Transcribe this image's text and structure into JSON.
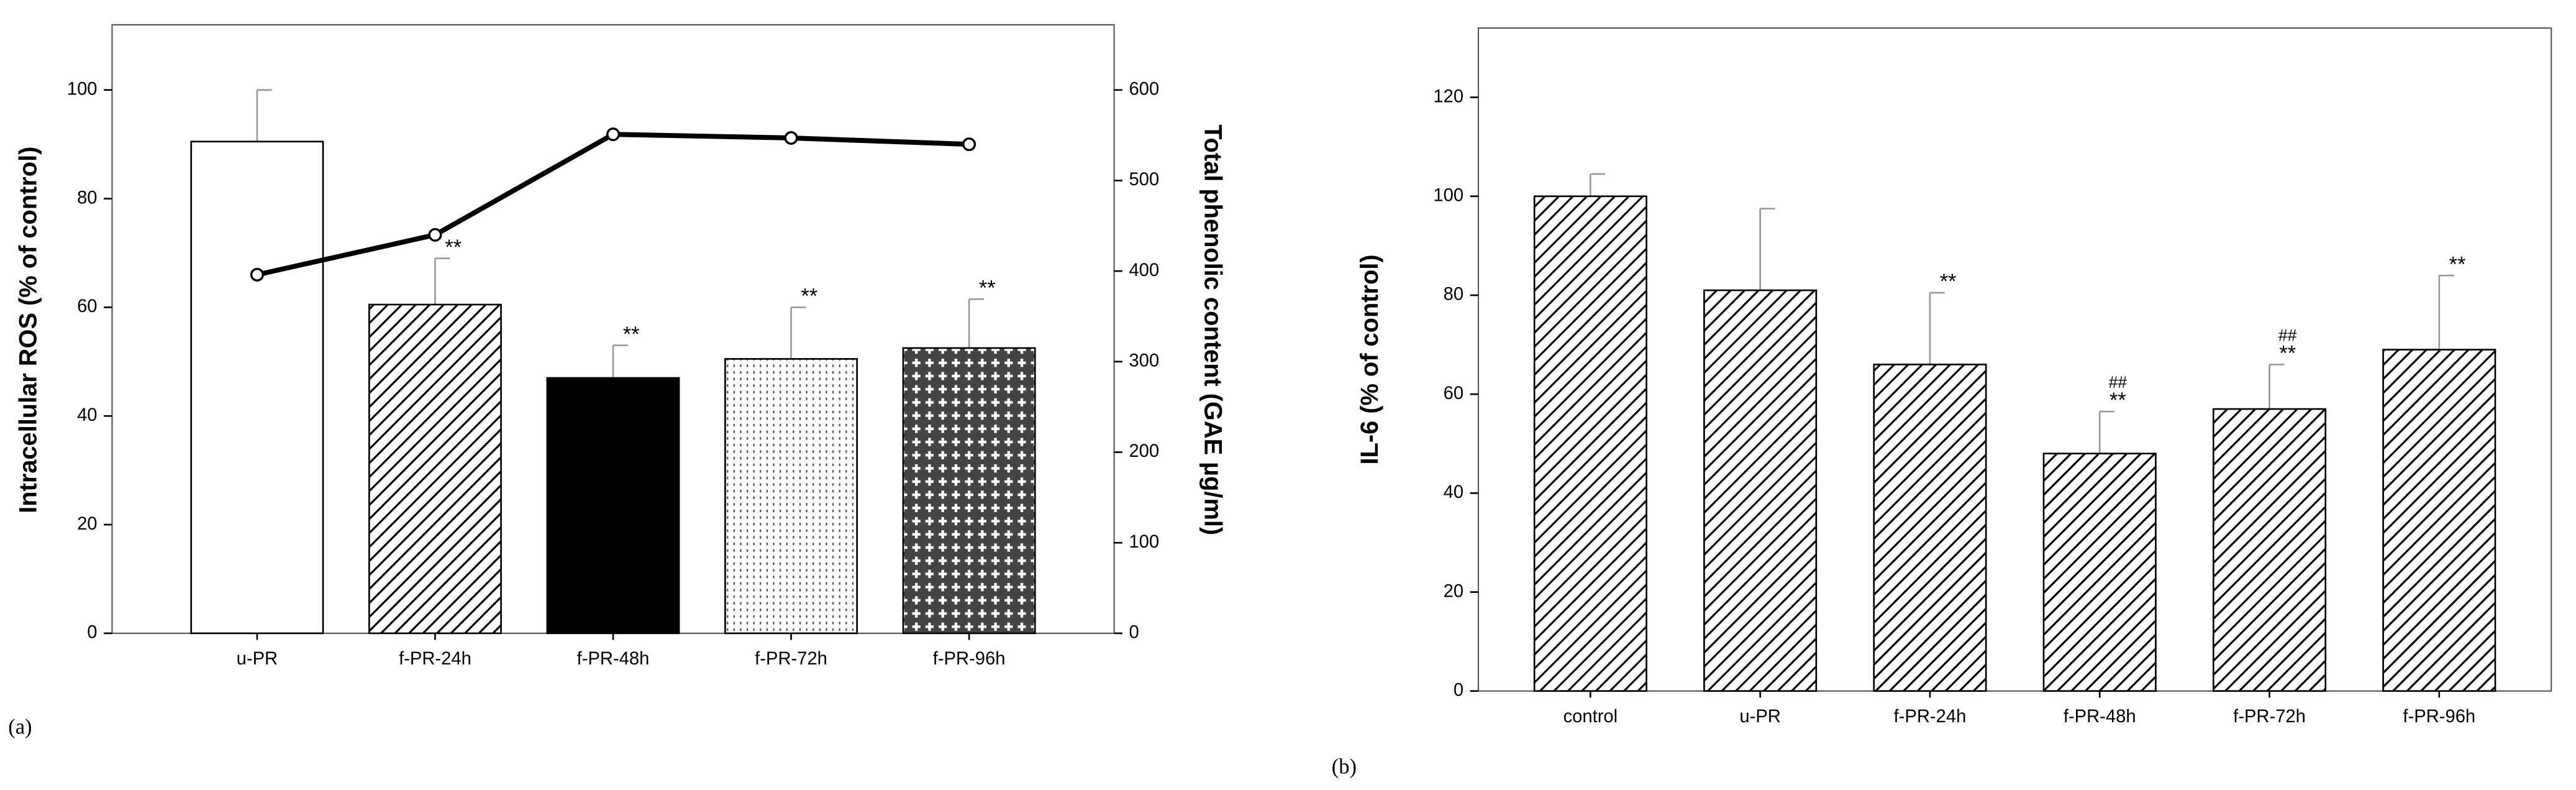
{
  "chart_data": [
    {
      "type": "bar",
      "panel_label": "(a)",
      "y_label": "Intracellular ROS (% of control)",
      "y2_label": "Total phenolic content (GAE µg/ml)",
      "categories": [
        "u-PR",
        "f-PR-24h",
        "f-PR-48h",
        "f-PR-72h",
        "f-PR-96h"
      ],
      "values": [
        90.5,
        60.5,
        47,
        50.5,
        52.5
      ],
      "errors": [
        9.5,
        8.5,
        6,
        9.5,
        9
      ],
      "significance": [
        null,
        "**",
        "**",
        "**",
        "**"
      ],
      "line": {
        "axis": "y2",
        "color": "#000000",
        "values": [
          396,
          440,
          551,
          547,
          540
        ]
      },
      "ylim": [
        0,
        112
      ],
      "yticks": [
        0,
        20,
        40,
        60,
        80,
        100
      ],
      "y2lim": [
        0,
        672
      ],
      "y2ticks": [
        0,
        100,
        200,
        300,
        400,
        500,
        600
      ]
    },
    {
      "type": "bar",
      "panel_label": "(b)",
      "y_label": "IL-6 (% of control)",
      "categories": [
        "control",
        "u-PR",
        "f-PR-24h",
        "f-PR-48h",
        "f-PR-72h",
        "f-PR-96h"
      ],
      "values": [
        100,
        81,
        66,
        48,
        57,
        69
      ],
      "errors": [
        4.5,
        16.5,
        14.5,
        8.5,
        9,
        15
      ],
      "significance": [
        null,
        null,
        "**",
        "**",
        "**",
        "**"
      ],
      "significance2": [
        null,
        null,
        null,
        "##",
        "##",
        null
      ],
      "ylim": [
        0,
        134
      ],
      "yticks": [
        0,
        20,
        40,
        60,
        80,
        100,
        120
      ]
    }
  ]
}
